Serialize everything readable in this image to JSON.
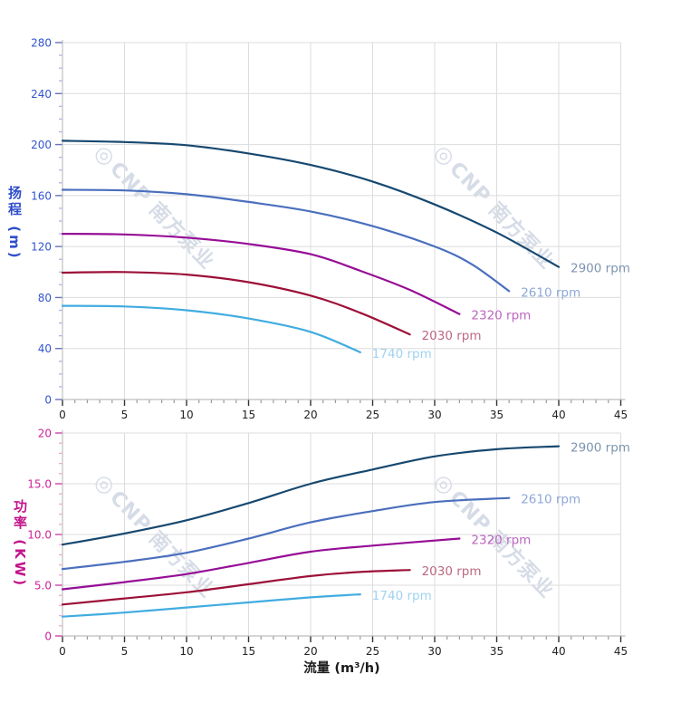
{
  "page": {
    "background": "#ffffff"
  },
  "watermark": {
    "logo": "◎",
    "text": "CNP 南方泵业",
    "color": "#b6c0d4"
  },
  "chart_data": [
    {
      "type": "line",
      "name": "head-curve-chart",
      "title": "",
      "xlabel": "",
      "ylabel": "扬程 (m)",
      "axis": {
        "xlim": [
          0,
          45
        ],
        "ylim": [
          0,
          280
        ],
        "xtick_step": 5,
        "xminor_step": 1,
        "ytick_step": 40,
        "yminor_step": 10,
        "xtick_labels": [
          "0",
          "5",
          "10",
          "15",
          "20",
          "25",
          "30",
          "35",
          "40",
          "45"
        ],
        "ytick_labels": [
          "0",
          "40",
          "80",
          "120",
          "160",
          "200",
          "240",
          "280"
        ],
        "grid": true,
        "grid_color": "#dcdcdc",
        "spine_color": "#c9c9c9",
        "x_tick_color": "#333333",
        "x_minor_tick_color": "#999999",
        "y_tick_color": "#6672bb",
        "y_minor_tick_color": "#aab6e8",
        "x_label_color": "#222222",
        "y_label_color": "#3355cf",
        "title_color": "#2f4ecc"
      },
      "series": [
        {
          "name": "2900 rpm",
          "color": "#17486f",
          "label_color": "#7d95b0",
          "x": [
            0,
            5,
            10,
            15,
            20,
            25,
            30,
            35,
            40
          ],
          "y": [
            203,
            202,
            199.5,
            193,
            184,
            171,
            153,
            131,
            104
          ]
        },
        {
          "name": "2610 rpm",
          "color": "#4a6fbd",
          "label_color": "#8ea8d8",
          "x": [
            0,
            5,
            10,
            15,
            20,
            25,
            30,
            33,
            36
          ],
          "y": [
            164.5,
            164,
            161,
            155,
            147.5,
            136,
            120,
            106,
            85
          ]
        },
        {
          "name": "2320 rpm",
          "color": "#960d96",
          "label_color": "#bc66c0",
          "x": [
            0,
            5,
            10,
            15,
            20,
            24,
            28,
            32
          ],
          "y": [
            130,
            129.5,
            127,
            122,
            114,
            101,
            86,
            67
          ]
        },
        {
          "name": "2030 rpm",
          "color": "#9c1038",
          "label_color": "#bb6880",
          "x": [
            0,
            5,
            10,
            15,
            20,
            24,
            28
          ],
          "y": [
            99.5,
            100,
            98,
            92,
            81.5,
            68,
            51
          ]
        },
        {
          "name": "1740 rpm",
          "color": "#41ace0",
          "label_color": "#9fd2f0",
          "x": [
            0,
            5,
            10,
            15,
            20,
            24
          ],
          "y": [
            73.5,
            73,
            70,
            63.5,
            53,
            37
          ]
        }
      ]
    },
    {
      "type": "line",
      "name": "power-curve-chart",
      "title": "",
      "xlabel": "流量 (m³/h)",
      "ylabel": "功率 (KW)",
      "axis": {
        "xlim": [
          0,
          45
        ],
        "ylim": [
          0,
          20
        ],
        "xtick_step": 5,
        "xminor_step": 1,
        "ytick_step": 5,
        "yminor_step": 1,
        "xtick_labels": [
          "0",
          "5",
          "10",
          "15",
          "20",
          "25",
          "30",
          "35",
          "40",
          "45"
        ],
        "ytick_labels": [
          "0",
          "5.0",
          "10.0",
          "15.0",
          "20"
        ],
        "grid": true,
        "grid_color": "#dcdcdc",
        "spine_color": "#c9c9c9",
        "x_tick_color": "#333333",
        "x_minor_tick_color": "#999999",
        "y_tick_color": "#cc44aa",
        "y_minor_tick_color": "#f0a8d0",
        "x_label_color": "#222222",
        "y_label_color": "#cc2299",
        "title_color": "#c2158c"
      },
      "series": [
        {
          "name": "2900 rpm",
          "color": "#17486f",
          "label_color": "#7d95b0",
          "x": [
            0,
            5,
            10,
            15,
            20,
            25,
            30,
            35,
            40
          ],
          "y": [
            9.0,
            10.1,
            11.4,
            13.1,
            15.0,
            16.4,
            17.7,
            18.4,
            18.7
          ]
        },
        {
          "name": "2610 rpm",
          "color": "#4a6fbd",
          "label_color": "#8ea8d8",
          "x": [
            0,
            5,
            10,
            15,
            20,
            25,
            30,
            36
          ],
          "y": [
            6.6,
            7.3,
            8.2,
            9.6,
            11.2,
            12.3,
            13.2,
            13.6
          ]
        },
        {
          "name": "2320 rpm",
          "color": "#960d96",
          "label_color": "#bc66c0",
          "x": [
            0,
            5,
            10,
            15,
            20,
            25,
            32
          ],
          "y": [
            4.6,
            5.3,
            6.1,
            7.2,
            8.3,
            8.9,
            9.6
          ]
        },
        {
          "name": "2030 rpm",
          "color": "#9c1038",
          "label_color": "#bb6880",
          "x": [
            0,
            5,
            10,
            15,
            20,
            24,
            28
          ],
          "y": [
            3.1,
            3.7,
            4.3,
            5.1,
            5.9,
            6.3,
            6.5
          ]
        },
        {
          "name": "1740 rpm",
          "color": "#41ace0",
          "label_color": "#9fd2f0",
          "x": [
            0,
            5,
            10,
            15,
            20,
            24
          ],
          "y": [
            1.9,
            2.3,
            2.8,
            3.3,
            3.8,
            4.1
          ]
        }
      ]
    }
  ]
}
